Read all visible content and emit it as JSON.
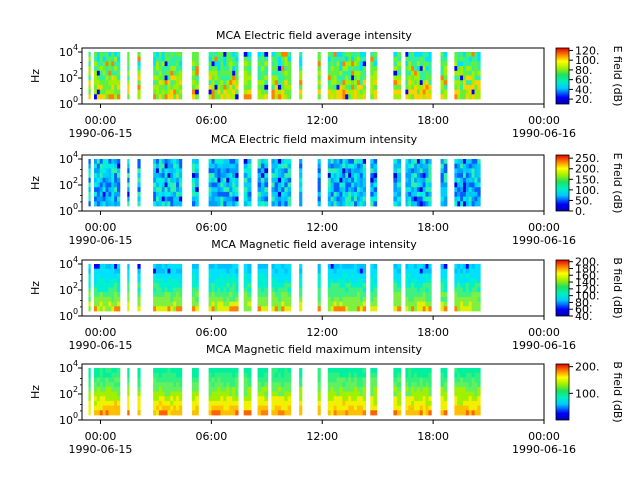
{
  "chart_data": [
    {
      "type": "heatmap",
      "title": "MCA  Electric field average intensity",
      "ylabel": "Hz",
      "y_ticks": [
        "10",
        "10",
        "10"
      ],
      "y_tick_exps": [
        "0",
        "2",
        "4"
      ],
      "x_ticks": [
        "00:00",
        "06:00",
        "12:00",
        "18:00",
        "00:00"
      ],
      "x_dates": [
        "1990-06-15",
        "1990-06-16"
      ],
      "colorbar_label": "E field (dB)",
      "colorbar_ticks": [
        "20.",
        "40.",
        "60.",
        "80.",
        "100.",
        "120."
      ],
      "colorbar_range": [
        10,
        125
      ],
      "style": "eavg"
    },
    {
      "type": "heatmap",
      "title": "MCA  Electric field maximum intensity",
      "ylabel": "Hz",
      "y_ticks": [
        "10",
        "10",
        "10"
      ],
      "y_tick_exps": [
        "0",
        "2",
        "4"
      ],
      "x_ticks": [
        "00:00",
        "06:00",
        "12:00",
        "18:00",
        "00:00"
      ],
      "x_dates": [
        "1990-06-15",
        "1990-06-16"
      ],
      "colorbar_label": "E field (dB)",
      "colorbar_ticks": [
        "0.",
        "50.",
        "100.",
        "150.",
        "200.",
        "250."
      ],
      "colorbar_range": [
        0,
        265
      ],
      "style": "emax"
    },
    {
      "type": "heatmap",
      "title": "MCA  Magnetic field average intensity",
      "ylabel": "Hz",
      "y_ticks": [
        "10",
        "10",
        "10"
      ],
      "y_tick_exps": [
        "0",
        "2",
        "4"
      ],
      "x_ticks": [
        "00:00",
        "06:00",
        "12:00",
        "18:00",
        "00:00"
      ],
      "x_dates": [
        "1990-06-15",
        "1990-06-16"
      ],
      "colorbar_label": "B field (dB)",
      "colorbar_ticks": [
        "40.",
        "60.",
        "80.",
        "100.",
        "120.",
        "140.",
        "160.",
        "180.",
        "200."
      ],
      "colorbar_range": [
        40,
        205
      ],
      "style": "bavg"
    },
    {
      "type": "heatmap",
      "title": "MCA  Magnetic field maximum intensity",
      "ylabel": "Hz",
      "y_ticks": [
        "10",
        "10",
        "10"
      ],
      "y_tick_exps": [
        "0",
        "2",
        "4"
      ],
      "x_ticks": [
        "00:00",
        "06:00",
        "12:00",
        "18:00",
        "00:00"
      ],
      "x_dates": [
        "1990-06-15",
        "1990-06-16"
      ],
      "colorbar_label": "B field (dB)",
      "colorbar_ticks": [
        "100.",
        "200."
      ],
      "colorbar_range": [
        0,
        210
      ],
      "style": "bmax"
    }
  ]
}
